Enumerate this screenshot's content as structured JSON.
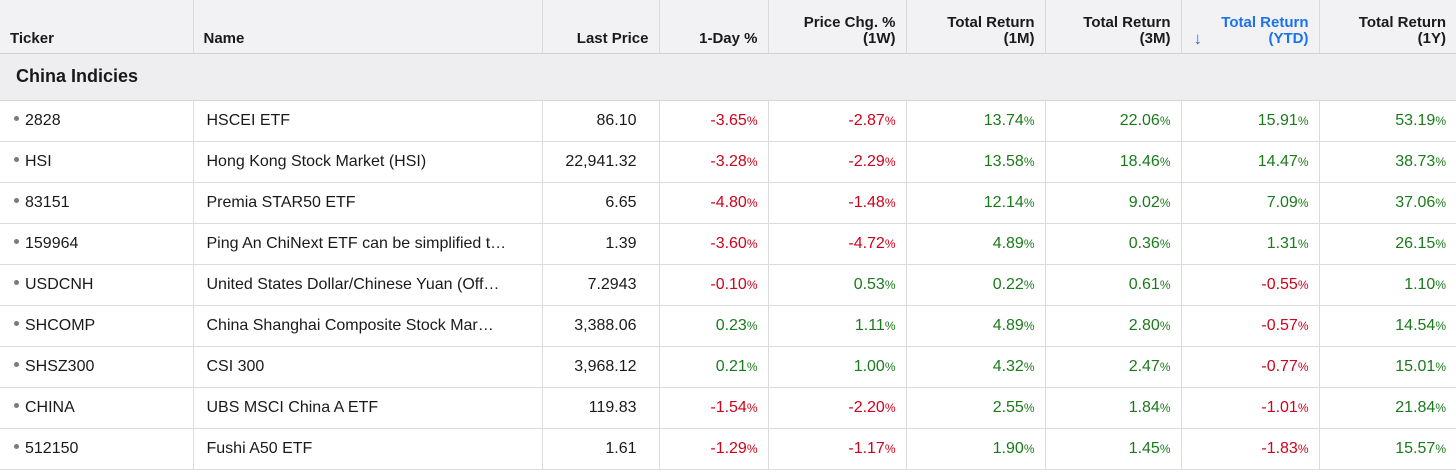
{
  "columns": [
    {
      "key": "ticker",
      "line1": "",
      "line2": "Ticker"
    },
    {
      "key": "name",
      "line1": "",
      "line2": "Name"
    },
    {
      "key": "last_price",
      "line1": "",
      "line2": "Last Price"
    },
    {
      "key": "day_pct",
      "line1": "",
      "line2": "1-Day %"
    },
    {
      "key": "price_chg_1w",
      "line1": "Price Chg. %",
      "line2": "(1W)"
    },
    {
      "key": "tr_1m",
      "line1": "Total Return",
      "line2": "(1M)"
    },
    {
      "key": "tr_3m",
      "line1": "Total Return",
      "line2": "(3M)"
    },
    {
      "key": "tr_ytd",
      "line1": "Total Return",
      "line2": "(YTD)"
    },
    {
      "key": "tr_1y",
      "line1": "Total Return",
      "line2": "(1Y)"
    }
  ],
  "sort_icon": "arrow-down-icon",
  "group": {
    "title": "China Indicies"
  },
  "colors": {
    "positive": "#1b7a1b",
    "negative": "#d0021b",
    "active_header": "#1a73e8"
  },
  "pct_symbol": "%",
  "rows": [
    {
      "ticker": "2828",
      "name": "HSCEI ETF",
      "last_price": "86.10",
      "day_pct": "-3.65",
      "price_chg_1w": "-2.87",
      "tr_1m": "13.74",
      "tr_3m": "22.06",
      "tr_ytd": "15.91",
      "tr_1y": "53.19"
    },
    {
      "ticker": "HSI",
      "name": "Hong Kong Stock Market (HSI)",
      "last_price": "22,941.32",
      "day_pct": "-3.28",
      "price_chg_1w": "-2.29",
      "tr_1m": "13.58",
      "tr_3m": "18.46",
      "tr_ytd": "14.47",
      "tr_1y": "38.73"
    },
    {
      "ticker": "83151",
      "name": "Premia STAR50 ETF",
      "last_price": "6.65",
      "day_pct": "-4.80",
      "price_chg_1w": "-1.48",
      "tr_1m": "12.14",
      "tr_3m": "9.02",
      "tr_ytd": "7.09",
      "tr_1y": "37.06"
    },
    {
      "ticker": "159964",
      "name": "Ping An ChiNext ETF can be simplified t…",
      "last_price": "1.39",
      "day_pct": "-3.60",
      "price_chg_1w": "-4.72",
      "tr_1m": "4.89",
      "tr_3m": "0.36",
      "tr_ytd": "1.31",
      "tr_1y": "26.15"
    },
    {
      "ticker": "USDCNH",
      "name": "United States Dollar/Chinese Yuan (Off…",
      "last_price": "7.2943",
      "day_pct": "-0.10",
      "price_chg_1w": "0.53",
      "tr_1m": "0.22",
      "tr_3m": "0.61",
      "tr_ytd": "-0.55",
      "tr_1y": "1.10"
    },
    {
      "ticker": "SHCOMP",
      "name": "China Shanghai Composite Stock Mar…",
      "last_price": "3,388.06",
      "day_pct": "0.23",
      "price_chg_1w": "1.11",
      "tr_1m": "4.89",
      "tr_3m": "2.80",
      "tr_ytd": "-0.57",
      "tr_1y": "14.54"
    },
    {
      "ticker": "SHSZ300",
      "name": "CSI 300",
      "last_price": "3,968.12",
      "day_pct": "0.21",
      "price_chg_1w": "1.00",
      "tr_1m": "4.32",
      "tr_3m": "2.47",
      "tr_ytd": "-0.77",
      "tr_1y": "15.01"
    },
    {
      "ticker": "CHINA",
      "name": "UBS MSCI China A ETF",
      "last_price": "119.83",
      "day_pct": "-1.54",
      "price_chg_1w": "-2.20",
      "tr_1m": "2.55",
      "tr_3m": "1.84",
      "tr_ytd": "-1.01",
      "tr_1y": "21.84"
    },
    {
      "ticker": "512150",
      "name": "Fushi A50 ETF",
      "last_price": "1.61",
      "day_pct": "-1.29",
      "price_chg_1w": "-1.17",
      "tr_1m": "1.90",
      "tr_3m": "1.45",
      "tr_ytd": "-1.83",
      "tr_1y": "15.57"
    }
  ]
}
